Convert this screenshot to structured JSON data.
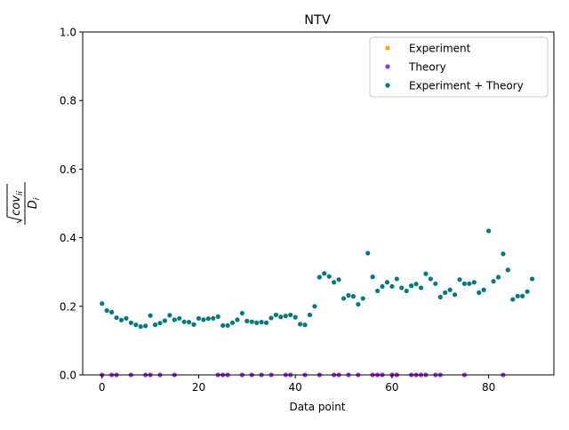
{
  "chart_data": {
    "type": "scatter",
    "title": "NTV",
    "xlabel": "Data point",
    "ylabel_parts": {
      "numerator": "cov",
      "subscript": "ii",
      "denominator": "D",
      "denominator_subscript": "i"
    },
    "xlim": [
      -4,
      93.5
    ],
    "ylim": [
      0.0,
      1.0
    ],
    "xticks": [
      0,
      20,
      40,
      60,
      80
    ],
    "yticks": [
      0.0,
      0.2,
      0.4,
      0.6,
      0.8,
      1.0
    ],
    "ytick_labels": [
      "0.0",
      "0.2",
      "0.4",
      "0.6",
      "0.8",
      "1.0"
    ],
    "legend_position": "top-right",
    "grid": false,
    "series": [
      {
        "name": "Experiment",
        "color": "#ffa500",
        "x": [],
        "y": []
      },
      {
        "name": "Theory",
        "color": "#9b30e0",
        "x": [
          0,
          2,
          3,
          6,
          9,
          10,
          12,
          15,
          24,
          25,
          26,
          29,
          31,
          33,
          35,
          38,
          39,
          42,
          45,
          48,
          49,
          51,
          53,
          56,
          57,
          58,
          60,
          61,
          64,
          65,
          66,
          67,
          69,
          70,
          75,
          83
        ],
        "y": [
          0,
          0,
          0,
          0,
          0,
          0,
          0,
          0,
          0,
          0,
          0,
          0,
          0,
          0,
          0,
          0,
          0,
          0,
          0,
          0,
          0,
          0,
          0,
          0,
          0,
          0,
          0,
          0,
          0,
          0,
          0,
          0,
          0,
          0,
          0,
          0
        ]
      },
      {
        "name": "Experiment + Theory",
        "color": "#007b7b",
        "x": [
          0,
          1,
          2,
          3,
          4,
          5,
          6,
          7,
          8,
          9,
          10,
          11,
          12,
          13,
          14,
          15,
          16,
          17,
          18,
          19,
          20,
          21,
          22,
          23,
          24,
          25,
          26,
          27,
          28,
          29,
          30,
          31,
          32,
          33,
          34,
          35,
          36,
          37,
          38,
          39,
          40,
          41,
          42,
          43,
          44,
          45,
          46,
          47,
          48,
          49,
          50,
          51,
          52,
          53,
          54,
          55,
          56,
          57,
          58,
          59,
          60,
          61,
          62,
          63,
          64,
          65,
          66,
          67,
          68,
          69,
          70,
          71,
          72,
          73,
          74,
          75,
          76,
          77,
          78,
          79,
          80,
          81,
          82,
          83,
          84,
          85,
          86,
          87,
          88,
          89
        ],
        "y": [
          0.208,
          0.188,
          0.183,
          0.167,
          0.16,
          0.165,
          0.152,
          0.146,
          0.141,
          0.143,
          0.173,
          0.146,
          0.151,
          0.158,
          0.174,
          0.161,
          0.165,
          0.155,
          0.154,
          0.147,
          0.165,
          0.161,
          0.164,
          0.165,
          0.17,
          0.144,
          0.144,
          0.152,
          0.161,
          0.18,
          0.157,
          0.155,
          0.152,
          0.154,
          0.152,
          0.166,
          0.175,
          0.169,
          0.172,
          0.175,
          0.168,
          0.148,
          0.146,
          0.175,
          0.2,
          0.285,
          0.296,
          0.287,
          0.27,
          0.278,
          0.223,
          0.232,
          0.229,
          0.206,
          0.223,
          0.355,
          0.286,
          0.245,
          0.258,
          0.27,
          0.258,
          0.28,
          0.254,
          0.245,
          0.26,
          0.265,
          0.254,
          0.295,
          0.28,
          0.266,
          0.227,
          0.24,
          0.248,
          0.234,
          0.278,
          0.266,
          0.266,
          0.27,
          0.24,
          0.248,
          0.42,
          0.273,
          0.285,
          0.353,
          0.306,
          0.22,
          0.23,
          0.23,
          0.243,
          0.28
        ]
      }
    ]
  }
}
